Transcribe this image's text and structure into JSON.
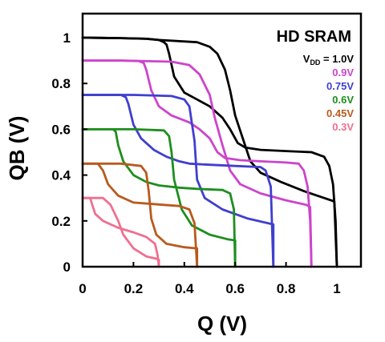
{
  "chart_data": {
    "type": "line",
    "title": "HD SRAM",
    "xlabel": "Q (V)",
    "ylabel": "QB (V)",
    "xlim": [
      0,
      1.1
    ],
    "ylim": [
      0,
      1.05
    ],
    "xticks": [
      0,
      0.2,
      0.4,
      0.6,
      0.8,
      1
    ],
    "xtick_labels": [
      "0",
      "0.2",
      "0.4",
      "0.6",
      "0.8",
      "1"
    ],
    "yticks": [
      0,
      0.2,
      0.4,
      0.6,
      0.8,
      1
    ],
    "ytick_labels": [
      "0",
      "0.2",
      "0.4",
      "0.6",
      "0.8",
      "1"
    ],
    "grid": false,
    "legend_position": "top-right",
    "legend_prefix": "V",
    "legend_prefix_sub": "DD",
    "legend_prefix_eq": " = ",
    "series": [
      {
        "name": "1.0V",
        "color": "#000000",
        "curve_a": [
          [
            0,
            1.0
          ],
          [
            0.15,
            0.998
          ],
          [
            0.25,
            0.995
          ],
          [
            0.3,
            0.99
          ],
          [
            0.32,
            0.98
          ],
          [
            0.33,
            0.97
          ],
          [
            0.34,
            0.93
          ],
          [
            0.36,
            0.83
          ],
          [
            0.4,
            0.76
          ],
          [
            0.45,
            0.73
          ],
          [
            0.5,
            0.7
          ],
          [
            0.55,
            0.65
          ],
          [
            0.58,
            0.6
          ],
          [
            0.61,
            0.54
          ],
          [
            0.64,
            0.52
          ],
          [
            0.7,
            0.51
          ],
          [
            0.8,
            0.505
          ],
          [
            0.9,
            0.5
          ],
          [
            0.95,
            0.48
          ],
          [
            0.97,
            0.44
          ],
          [
            0.985,
            0.36
          ],
          [
            0.995,
            0.2
          ],
          [
            1.0,
            0.0
          ]
        ],
        "curve_b": [
          [
            0,
            1.0
          ],
          [
            0.15,
            0.998
          ],
          [
            0.25,
            0.995
          ],
          [
            0.3,
            0.99
          ],
          [
            0.45,
            0.98
          ],
          [
            0.5,
            0.96
          ],
          [
            0.53,
            0.93
          ],
          [
            0.56,
            0.86
          ],
          [
            0.58,
            0.77
          ],
          [
            0.6,
            0.66
          ],
          [
            0.63,
            0.56
          ],
          [
            0.66,
            0.46
          ],
          [
            0.7,
            0.41
          ],
          [
            0.78,
            0.37
          ],
          [
            0.87,
            0.33
          ],
          [
            0.95,
            0.3
          ],
          [
            0.99,
            0.285
          ],
          [
            1.0,
            0.0
          ]
        ]
      },
      {
        "name": "0.9V",
        "color": "#CC44CC",
        "curve_a": [
          [
            0,
            0.9
          ],
          [
            0.15,
            0.9
          ],
          [
            0.22,
            0.898
          ],
          [
            0.24,
            0.89
          ],
          [
            0.25,
            0.86
          ],
          [
            0.27,
            0.77
          ],
          [
            0.3,
            0.7
          ],
          [
            0.35,
            0.66
          ],
          [
            0.42,
            0.63
          ],
          [
            0.46,
            0.6
          ],
          [
            0.5,
            0.56
          ],
          [
            0.53,
            0.5
          ],
          [
            0.56,
            0.475
          ],
          [
            0.62,
            0.465
          ],
          [
            0.7,
            0.46
          ],
          [
            0.8,
            0.455
          ],
          [
            0.85,
            0.45
          ],
          [
            0.87,
            0.42
          ],
          [
            0.885,
            0.35
          ],
          [
            0.895,
            0.2
          ],
          [
            0.9,
            0.0
          ]
        ],
        "curve_b": [
          [
            0,
            0.9
          ],
          [
            0.15,
            0.9
          ],
          [
            0.35,
            0.895
          ],
          [
            0.42,
            0.88
          ],
          [
            0.46,
            0.84
          ],
          [
            0.5,
            0.75
          ],
          [
            0.52,
            0.65
          ],
          [
            0.55,
            0.53
          ],
          [
            0.58,
            0.42
          ],
          [
            0.62,
            0.36
          ],
          [
            0.7,
            0.32
          ],
          [
            0.8,
            0.29
          ],
          [
            0.88,
            0.27
          ],
          [
            0.895,
            0.26
          ],
          [
            0.9,
            0.0
          ]
        ]
      },
      {
        "name": "0.75V",
        "color": "#3F3FCF",
        "curve_a": [
          [
            0,
            0.75
          ],
          [
            0.15,
            0.75
          ],
          [
            0.17,
            0.74
          ],
          [
            0.18,
            0.71
          ],
          [
            0.2,
            0.62
          ],
          [
            0.23,
            0.56
          ],
          [
            0.28,
            0.51
          ],
          [
            0.33,
            0.48
          ],
          [
            0.38,
            0.46
          ],
          [
            0.42,
            0.45
          ],
          [
            0.5,
            0.445
          ],
          [
            0.6,
            0.44
          ],
          [
            0.7,
            0.435
          ],
          [
            0.72,
            0.42
          ],
          [
            0.74,
            0.35
          ],
          [
            0.75,
            0.0
          ]
        ],
        "curve_b": [
          [
            0,
            0.75
          ],
          [
            0.2,
            0.75
          ],
          [
            0.35,
            0.745
          ],
          [
            0.4,
            0.73
          ],
          [
            0.42,
            0.7
          ],
          [
            0.44,
            0.55
          ],
          [
            0.45,
            0.38
          ],
          [
            0.48,
            0.3
          ],
          [
            0.55,
            0.25
          ],
          [
            0.65,
            0.21
          ],
          [
            0.73,
            0.19
          ],
          [
            0.75,
            0.185
          ],
          [
            0.75,
            0.0
          ]
        ]
      },
      {
        "name": "0.6V",
        "color": "#1E8E1E",
        "curve_a": [
          [
            0,
            0.6
          ],
          [
            0.12,
            0.6
          ],
          [
            0.13,
            0.59
          ],
          [
            0.14,
            0.53
          ],
          [
            0.16,
            0.46
          ],
          [
            0.2,
            0.4
          ],
          [
            0.25,
            0.37
          ],
          [
            0.3,
            0.355
          ],
          [
            0.38,
            0.345
          ],
          [
            0.45,
            0.34
          ],
          [
            0.55,
            0.335
          ],
          [
            0.58,
            0.32
          ],
          [
            0.595,
            0.25
          ],
          [
            0.6,
            0.0
          ]
        ],
        "curve_b": [
          [
            0,
            0.6
          ],
          [
            0.2,
            0.6
          ],
          [
            0.32,
            0.595
          ],
          [
            0.34,
            0.57
          ],
          [
            0.35,
            0.5
          ],
          [
            0.36,
            0.38
          ],
          [
            0.39,
            0.25
          ],
          [
            0.43,
            0.18
          ],
          [
            0.5,
            0.14
          ],
          [
            0.57,
            0.12
          ],
          [
            0.6,
            0.115
          ],
          [
            0.6,
            0.0
          ]
        ]
      },
      {
        "name": "0.45V",
        "color": "#B85A1E",
        "curve_a": [
          [
            0,
            0.45
          ],
          [
            0.06,
            0.45
          ],
          [
            0.08,
            0.42
          ],
          [
            0.1,
            0.36
          ],
          [
            0.14,
            0.31
          ],
          [
            0.2,
            0.28
          ],
          [
            0.26,
            0.275
          ],
          [
            0.32,
            0.27
          ],
          [
            0.38,
            0.265
          ],
          [
            0.42,
            0.25
          ],
          [
            0.44,
            0.19
          ],
          [
            0.45,
            0.0
          ]
        ],
        "curve_b": [
          [
            0,
            0.45
          ],
          [
            0.15,
            0.45
          ],
          [
            0.23,
            0.44
          ],
          [
            0.25,
            0.41
          ],
          [
            0.26,
            0.33
          ],
          [
            0.27,
            0.21
          ],
          [
            0.29,
            0.14
          ],
          [
            0.33,
            0.1
          ],
          [
            0.4,
            0.085
          ],
          [
            0.45,
            0.08
          ],
          [
            0.45,
            0.0
          ]
        ]
      },
      {
        "name": "0.3V",
        "color": "#EE7090",
        "curve_a": [
          [
            0,
            0.3
          ],
          [
            0.03,
            0.3
          ],
          [
            0.035,
            0.28
          ],
          [
            0.05,
            0.23
          ],
          [
            0.08,
            0.2
          ],
          [
            0.14,
            0.17
          ],
          [
            0.2,
            0.15
          ],
          [
            0.25,
            0.13
          ],
          [
            0.285,
            0.1
          ],
          [
            0.295,
            0.05
          ],
          [
            0.3,
            0.0
          ]
        ],
        "curve_b": [
          [
            0,
            0.3
          ],
          [
            0.08,
            0.3
          ],
          [
            0.11,
            0.27
          ],
          [
            0.14,
            0.2
          ],
          [
            0.16,
            0.14
          ],
          [
            0.2,
            0.08
          ],
          [
            0.25,
            0.045
          ],
          [
            0.29,
            0.035
          ],
          [
            0.3,
            0.03
          ],
          [
            0.3,
            0.0
          ]
        ]
      }
    ]
  }
}
